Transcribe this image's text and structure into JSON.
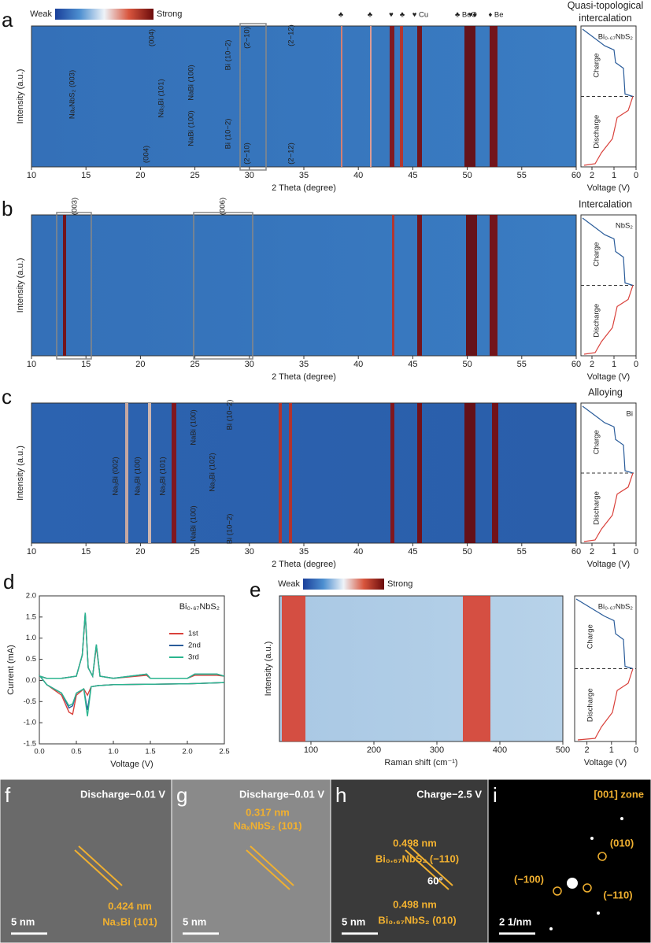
{
  "chart_data": [
    {
      "type": "heatmap",
      "label": "a",
      "xlabel": "2 Theta (degree)",
      "ylabel": "Intensity (a.u.)",
      "xlim": [
        10,
        60
      ],
      "xticks": [
        10,
        15,
        20,
        25,
        30,
        35,
        40,
        45,
        50,
        55,
        60
      ],
      "colorbar": [
        "Weak",
        "Strong"
      ],
      "annotations": [
        "(004)",
        "(004)",
        "Na₃Bi (101)",
        "NaBi (100)",
        "NaBi (100)",
        "Bi (10−2)",
        "Bi (10−2)",
        "(2−10)",
        "(2−10)",
        "(2−12)",
        "(2−12)",
        "NaₓNbS₂ (003)"
      ],
      "markers": [
        "♣",
        "♣",
        "♥",
        "♣",
        "♥ Cu",
        "♣ BeO",
        "♥♦",
        "♦ Be"
      ],
      "side": {
        "title": "Quasi-topological intercalation",
        "sample": "Bi₀.₆₇NbS₂",
        "charge": "Charge",
        "discharge": "Discharge",
        "xlabel": "Voltage (V)",
        "xlim": [
          2.5,
          0
        ],
        "xticks": [
          2,
          1,
          0
        ]
      }
    },
    {
      "type": "heatmap",
      "label": "b",
      "xlabel": "2 Theta (degree)",
      "ylabel": "Intensity (a.u.)",
      "xlim": [
        10,
        60
      ],
      "xticks": [
        10,
        15,
        20,
        25,
        30,
        35,
        40,
        45,
        50,
        55,
        60
      ],
      "annotations": [
        "(003)",
        "(006)"
      ],
      "side": {
        "title": "Intercalation",
        "sample": "NbS₂",
        "charge": "Charge",
        "discharge": "Discharge",
        "xlabel": "Voltage (V)",
        "xlim": [
          2.5,
          0
        ],
        "xticks": [
          2,
          1,
          0
        ]
      }
    },
    {
      "type": "heatmap",
      "label": "c",
      "xlabel": "2 Theta (degree)",
      "ylabel": "Intensity (a.u.)",
      "xlim": [
        10,
        60
      ],
      "xticks": [
        10,
        15,
        20,
        25,
        30,
        35,
        40,
        45,
        50,
        55,
        60
      ],
      "annotations": [
        "Na₃Bi (002)",
        "Na₃Bi (100)",
        "Na₃Bi (101)",
        "NaBi (100)",
        "Na₃Bi (102)",
        "Bi (10−2)",
        "NaBi (100)",
        "Bi (10−2)"
      ],
      "side": {
        "title": "Alloying",
        "sample": "Bi",
        "charge": "Charge",
        "discharge": "Discharge",
        "xlabel": "Voltage (V)",
        "xlim": [
          2.5,
          0
        ],
        "xticks": [
          2,
          1,
          0
        ]
      }
    },
    {
      "type": "line",
      "label": "d",
      "title": "Bi₀.₆₇NbS₂",
      "xlabel": "Voltage (V)",
      "ylabel": "Current (mA)",
      "xlim": [
        0,
        2.5
      ],
      "ylim": [
        -1.5,
        2.0
      ],
      "xticks": [
        {
          "value": 0,
          "label": "0.0"
        },
        0.5,
        {
          "value": 1,
          "label": "1.0"
        },
        1.5,
        {
          "value": 2,
          "label": "2.0"
        },
        2.5
      ],
      "yticks": [
        -1.5,
        {
          "value": -1,
          "label": "-1.0"
        },
        -0.5,
        {
          "value": 0,
          "label": "0.0"
        },
        0.5,
        {
          "value": 1,
          "label": "1.0"
        },
        1.5,
        {
          "value": 2,
          "label": "2.0"
        }
      ],
      "legend": "right",
      "x": [
        2.5,
        2.0,
        1.0,
        0.8,
        0.7,
        0.65,
        0.6,
        0.5,
        0.45,
        0.4,
        0.3,
        0.1,
        0.01,
        0.1,
        0.3,
        0.5,
        0.58,
        0.62,
        0.66,
        0.72,
        0.77,
        0.82,
        1.0,
        1.45,
        1.5,
        2.0,
        2.1,
        2.4,
        2.5
      ],
      "series": [
        {
          "name": "1st",
          "color": "#d9413b",
          "values": [
            -0.05,
            -0.08,
            -0.1,
            -0.12,
            -0.15,
            -0.35,
            -0.2,
            -0.35,
            -0.8,
            -0.75,
            -0.35,
            -0.1,
            0.1,
            0.05,
            0.05,
            0.1,
            0.6,
            1.55,
            0.3,
            0.1,
            0.8,
            0.1,
            0.05,
            0.12,
            0.05,
            0.05,
            0.12,
            0.12,
            0.1
          ]
        },
        {
          "name": "2nd",
          "color": "#2a5c9a",
          "values": [
            -0.05,
            -0.08,
            -0.1,
            -0.12,
            -0.15,
            -0.7,
            -0.2,
            -0.3,
            -0.6,
            -0.65,
            -0.3,
            -0.1,
            0.1,
            0.05,
            0.05,
            0.1,
            0.6,
            1.6,
            0.3,
            0.1,
            0.85,
            0.1,
            0.05,
            0.15,
            0.05,
            0.05,
            0.15,
            0.15,
            0.1
          ]
        },
        {
          "name": "3rd",
          "color": "#2ab58e",
          "values": [
            -0.05,
            -0.08,
            -0.1,
            -0.12,
            -0.15,
            -0.85,
            -0.2,
            -0.3,
            -0.55,
            -0.6,
            -0.3,
            -0.1,
            0.1,
            0.05,
            0.05,
            0.1,
            0.6,
            1.6,
            0.3,
            0.1,
            0.85,
            0.1,
            0.05,
            0.15,
            0.05,
            0.05,
            0.15,
            0.15,
            0.1
          ]
        }
      ]
    },
    {
      "type": "heatmap",
      "label": "e",
      "xlabel": "Raman shift (cm⁻¹)",
      "ylabel": "Intensity (a.u.)",
      "xlim": [
        50,
        500
      ],
      "xticks": [
        100,
        200,
        300,
        400,
        500
      ],
      "colorbar": [
        "Weak",
        "Strong"
      ],
      "annotations": [],
      "side": {
        "sample": "Bi₀.₆₇NbS₂",
        "charge": "Charge",
        "discharge": "Discharge",
        "xlabel": "Voltage (V)",
        "xlim": [
          2.5,
          0
        ],
        "xticks": [
          2,
          1,
          0
        ]
      }
    }
  ],
  "images": [
    {
      "label": "f",
      "texts": [
        "Discharge−0.01 V",
        "0.424 nm",
        "Na₃Bi (101)"
      ],
      "scale": "5 nm"
    },
    {
      "label": "g",
      "texts": [
        "Discharge−0.01 V",
        "0.317 nm",
        "NaₓNbS₂ (101)"
      ],
      "scale": "5 nm"
    },
    {
      "label": "h",
      "texts": [
        "Charge−2.5 V",
        "0.498 nm",
        "Bi₀.₆₇NbS₂ (−110)",
        "60°",
        "0.498 nm",
        "Bi₀.₆₇NbS₂ (010)"
      ],
      "scale": "5 nm"
    },
    {
      "label": "i",
      "texts": [
        "[001] zone",
        "(010)",
        "(−100)",
        "(−110)"
      ],
      "scale": "2 1/nm"
    }
  ]
}
